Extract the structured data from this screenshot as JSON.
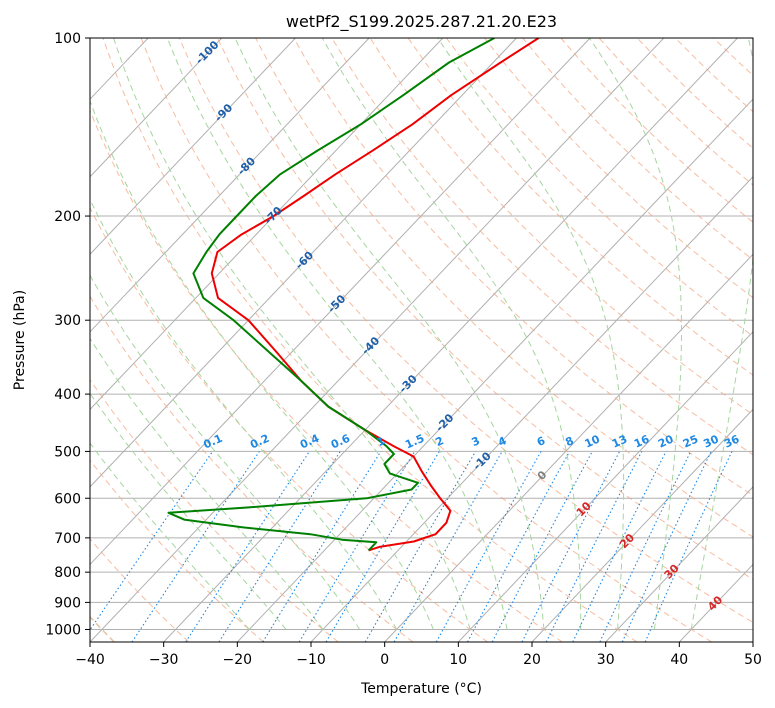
{
  "chart_data": {
    "type": "line",
    "subtype": "skew-t",
    "title": "wetPf2_S199.2025.287.21.20.E23",
    "xlabel": "Temperature (°C)",
    "ylabel": "Pressure (hPa)",
    "xlim": [
      -40,
      50
    ],
    "ylim": [
      1050,
      100
    ],
    "y_scale": "log",
    "x_ticks": [
      "−40",
      "−30",
      "−20",
      "−10",
      "0",
      "10",
      "20",
      "30",
      "40",
      "50"
    ],
    "y_ticks": [
      {
        "p": 100,
        "label": "100"
      },
      {
        "p": 200,
        "label": "200"
      },
      {
        "p": 300,
        "label": "300"
      },
      {
        "p": 400,
        "label": "400"
      },
      {
        "p": 500,
        "label": "500"
      },
      {
        "p": 600,
        "label": "600"
      },
      {
        "p": 700,
        "label": "700"
      },
      {
        "p": 800,
        "label": "800"
      },
      {
        "p": 900,
        "label": "900"
      },
      {
        "p": 1000,
        "label": "1000"
      }
    ],
    "grid": true,
    "colors": {
      "temperature": "#ee0000",
      "dewpoint": "#008000",
      "isotherm": "#b0b0b0",
      "dry_adiabat": "#f4a582",
      "moist_adiabat": "#a6d5a0",
      "mixing_ratio": "#1e88e5",
      "isotherm_label": "#1f5fa8",
      "warm_label": "#d62728",
      "zero_label": "#7f7f7f"
    },
    "isotherm_labels": [
      {
        "label": "-100",
        "t": -100,
        "p": 106
      },
      {
        "label": "-90",
        "t": -90,
        "p": 134
      },
      {
        "label": "-80",
        "t": -80,
        "p": 165
      },
      {
        "label": "-70",
        "t": -70,
        "p": 200
      },
      {
        "label": "-60",
        "t": -60,
        "p": 238
      },
      {
        "label": "-50",
        "t": -50,
        "p": 282
      },
      {
        "label": "-40",
        "t": -40,
        "p": 332
      },
      {
        "label": "-30",
        "t": -30,
        "p": 385
      },
      {
        "label": "-20",
        "t": -20,
        "p": 448
      },
      {
        "label": "-10",
        "t": -10,
        "p": 520
      },
      {
        "label": "0",
        "t": 0,
        "p": 550
      },
      {
        "label": "10",
        "t": 10,
        "p": 627
      },
      {
        "label": "20",
        "t": 20,
        "p": 710
      },
      {
        "label": "30",
        "t": 30,
        "p": 800
      },
      {
        "label": "40",
        "t": 40,
        "p": 905
      }
    ],
    "mixing_ratio_labels": [
      "0.1",
      "0.2",
      "0.4",
      "0.6",
      "1",
      "1.5",
      "2",
      "3",
      "4",
      "6",
      "8",
      "10",
      "13",
      "16",
      "20",
      "25",
      "30",
      "36"
    ],
    "mixing_ratio_label_p": 495,
    "series": [
      {
        "name": "temperature",
        "points": [
          [
            -57,
            100
          ],
          [
            -59,
            110
          ],
          [
            -61.5,
            125
          ],
          [
            -63,
            140
          ],
          [
            -65,
            155
          ],
          [
            -67,
            170
          ],
          [
            -68.5,
            185
          ],
          [
            -70,
            200
          ],
          [
            -72,
            215
          ],
          [
            -73,
            230
          ],
          [
            -71,
            250
          ],
          [
            -67,
            275
          ],
          [
            -60,
            300
          ],
          [
            -52,
            340
          ],
          [
            -45,
            380
          ],
          [
            -38,
            420
          ],
          [
            -30,
            460
          ],
          [
            -24,
            490
          ],
          [
            -20,
            510
          ],
          [
            -17,
            540
          ],
          [
            -14,
            570
          ],
          [
            -11,
            600
          ],
          [
            -8,
            630
          ],
          [
            -7,
            660
          ],
          [
            -7,
            690
          ],
          [
            -9,
            710
          ],
          [
            -13,
            725
          ],
          [
            -14,
            735
          ]
        ]
      },
      {
        "name": "dewpoint",
        "points": [
          [
            -63,
            100
          ],
          [
            -66,
            110
          ],
          [
            -68,
            125
          ],
          [
            -70,
            140
          ],
          [
            -72.5,
            155
          ],
          [
            -74.5,
            170
          ],
          [
            -75,
            185
          ],
          [
            -75,
            200
          ],
          [
            -75,
            215
          ],
          [
            -74.5,
            230
          ],
          [
            -73.5,
            250
          ],
          [
            -69,
            275
          ],
          [
            -62,
            300
          ],
          [
            -53,
            340
          ],
          [
            -45,
            380
          ],
          [
            -38,
            420
          ],
          [
            -30,
            460
          ],
          [
            -25,
            490
          ],
          [
            -23,
            505
          ],
          [
            -23,
            525
          ],
          [
            -21,
            545
          ],
          [
            -16,
            565
          ],
          [
            -16,
            580
          ],
          [
            -21,
            600
          ],
          [
            -36,
            622
          ],
          [
            -46,
            635
          ],
          [
            -43,
            652
          ],
          [
            -34,
            672
          ],
          [
            -24,
            690
          ],
          [
            -19,
            705
          ],
          [
            -14,
            712
          ],
          [
            -14,
            725
          ],
          [
            -14,
            735
          ]
        ]
      }
    ]
  }
}
